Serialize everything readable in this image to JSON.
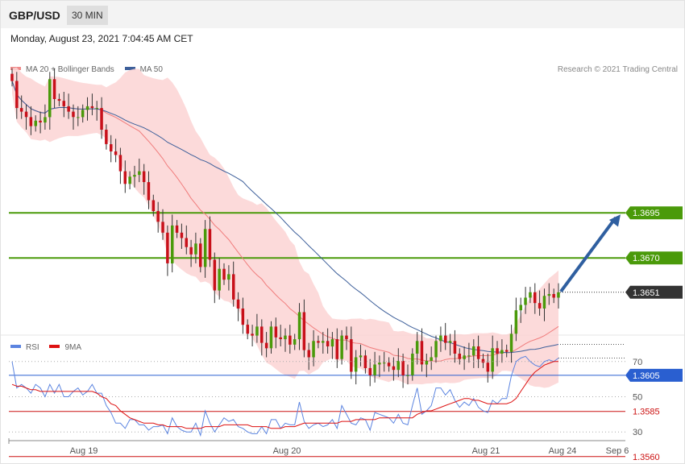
{
  "header": {
    "symbol": "GBP/USD",
    "timeframe": "30 MIN",
    "datetime": "Monday, August 23, 2021 7:04:45 AM CET"
  },
  "legend": {
    "ma20_bollinger": "MA 20 + Bollinger Bands",
    "ma50": "MA 50",
    "rsi": "RSI",
    "rsi_ma": "9MA"
  },
  "research": "Research © 2021 Trading Central",
  "colors": {
    "bull": "#4a9a0a",
    "bear": "#c8101a",
    "bollinger_fill": "#fcd4d4",
    "ma20": "#f07c7c",
    "ma50": "#3d5f9a",
    "resistance": "#4a9a0a",
    "pivot": "#2a5fd0",
    "support": "#cc1111",
    "last_price": "#333333",
    "rsi": "#5b84e0",
    "rsi_ma": "#dd1111",
    "arrow": "#2f5fa0"
  },
  "chart_data": [
    {
      "type": "candlestick",
      "title": "GBP/USD 30 MIN",
      "xlabel": "",
      "ylabel": "",
      "ylim": [
        1.3555,
        1.3795
      ],
      "x_ticks": [
        "Aug 19",
        "Aug 20",
        "Aug 21",
        "Aug 24",
        "Sep 6"
      ],
      "levels": [
        {
          "label": "1.3695",
          "value": 1.3695,
          "kind": "resistance"
        },
        {
          "label": "1.3670",
          "value": 1.367,
          "kind": "resistance"
        },
        {
          "label": "1.3651",
          "value": 1.3651,
          "kind": "last"
        },
        {
          "label": "1.3605",
          "value": 1.3605,
          "kind": "pivot"
        },
        {
          "label": "1.3585",
          "value": 1.3585,
          "kind": "support"
        },
        {
          "label": "1.3560",
          "value": 1.356,
          "kind": "support"
        }
      ],
      "close": [
        1.3768,
        1.3753,
        1.3751,
        1.3748,
        1.3743,
        1.3746,
        1.3745,
        1.3748,
        1.3769,
        1.3758,
        1.3757,
        1.3754,
        1.3751,
        1.3748,
        1.3748,
        1.3752,
        1.3754,
        1.3753,
        1.3753,
        1.3741,
        1.3733,
        1.3729,
        1.3727,
        1.3718,
        1.3711,
        1.3715,
        1.3716,
        1.3718,
        1.3712,
        1.3702,
        1.3696,
        1.369,
        1.3684,
        1.3667,
        1.3688,
        1.3684,
        1.3681,
        1.3676,
        1.3672,
        1.3678,
        1.3665,
        1.3686,
        1.3669,
        1.3652,
        1.3664,
        1.3658,
        1.3661,
        1.3647,
        1.3642,
        1.3633,
        1.3628,
        1.3627,
        1.3632,
        1.3623,
        1.362,
        1.3632,
        1.3626,
        1.3625,
        1.3627,
        1.3622,
        1.3625,
        1.364,
        1.3619,
        1.3615,
        1.3624,
        1.3623,
        1.3624,
        1.3621,
        1.3625,
        1.3614,
        1.3627,
        1.3625,
        1.3607,
        1.3615,
        1.3616,
        1.3609,
        1.3605,
        1.3611,
        1.3612,
        1.3612,
        1.361,
        1.3608,
        1.3613,
        1.3605,
        1.3605,
        1.3617,
        1.3624,
        1.3611,
        1.3613,
        1.3615,
        1.3624,
        1.3627,
        1.3623,
        1.3624,
        1.3617,
        1.3614,
        1.3616,
        1.3616,
        1.3621,
        1.3614,
        1.3612,
        1.3607,
        1.362,
        1.3617,
        1.3619,
        1.3618,
        1.3628,
        1.3641,
        1.3644,
        1.3648,
        1.3651,
        1.3645,
        1.3642,
        1.3649,
        1.365,
        1.3648,
        1.3651
      ]
    },
    {
      "type": "line",
      "title": "RSI",
      "ylim": [
        20,
        80
      ],
      "y_ticks": [
        70,
        50,
        30
      ],
      "series": [
        {
          "name": "RSI",
          "values": [
            70,
            55,
            57,
            55,
            52,
            57,
            55,
            50,
            57,
            52,
            57,
            50,
            50,
            53,
            55,
            51,
            53,
            57,
            52,
            52,
            45,
            41,
            35,
            35,
            32,
            37,
            37,
            34,
            34,
            31,
            33,
            33,
            34,
            29,
            38,
            33,
            31,
            30,
            30,
            35,
            28,
            42,
            35,
            30,
            34,
            38,
            36,
            37,
            33,
            32,
            30,
            29,
            29,
            33,
            29,
            37,
            37,
            32,
            35,
            34,
            34,
            47,
            36,
            32,
            34,
            35,
            33,
            34,
            37,
            32,
            45,
            40,
            35,
            34,
            38,
            37,
            31,
            41,
            40,
            39,
            38,
            35,
            40,
            35,
            34,
            45,
            55,
            40,
            42,
            45,
            55,
            55,
            51,
            54,
            48,
            44,
            47,
            45,
            49,
            44,
            42,
            41,
            48,
            46,
            49,
            49,
            62,
            70,
            72,
            73,
            70,
            68,
            67,
            70,
            71,
            70,
            72
          ]
        },
        {
          "name": "9MA",
          "values": [
            57,
            56,
            56,
            55,
            54,
            54,
            53,
            53,
            53,
            53,
            53,
            53,
            53,
            53,
            53,
            53,
            53,
            53,
            52,
            50,
            49,
            46,
            45,
            42,
            40,
            38,
            37,
            36,
            35,
            35,
            35,
            34,
            34,
            33,
            33,
            33,
            33,
            32,
            32,
            32,
            32,
            33,
            33,
            33,
            33,
            34,
            34,
            34,
            34,
            34,
            34,
            33,
            33,
            33,
            33,
            32,
            32,
            32,
            33,
            33,
            33,
            34,
            35,
            35,
            35,
            35,
            35,
            35,
            35,
            35,
            36,
            36,
            36,
            37,
            37,
            37,
            37,
            37,
            38,
            38,
            38,
            38,
            38,
            38,
            38,
            38,
            40,
            41,
            42,
            42,
            43,
            44,
            45,
            46,
            47,
            48,
            49,
            49,
            48,
            48,
            47,
            46,
            46,
            46,
            46,
            46,
            47,
            49,
            53,
            57,
            61,
            64,
            66,
            68,
            69,
            70,
            70
          ]
        }
      ]
    }
  ]
}
